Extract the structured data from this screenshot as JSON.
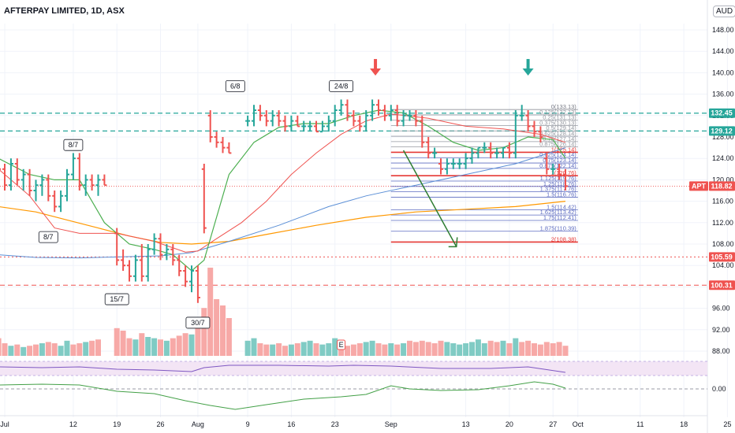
{
  "header": {
    "title": "AFTERPAY LIMITED, 1D, ASX",
    "currency": "AUD"
  },
  "chart_data": {
    "type": "bar",
    "symbol": "APT",
    "timeframe": "1D",
    "title": "AFTERPAY LIMITED, 1D, ASX",
    "y_ticks": [
      "148.00",
      "144.00",
      "140.00",
      "136.00",
      "132.00",
      "128.00",
      "124.00",
      "120.00",
      "116.00",
      "112.00",
      "108.00",
      "104.00",
      "100.00",
      "96.00",
      "92.00",
      "88.00"
    ],
    "y_tick_values": [
      148,
      144,
      140,
      136,
      132,
      128,
      124,
      120,
      116,
      112,
      108,
      104,
      100,
      96,
      92,
      88
    ],
    "ylim": [
      86.5,
      151.5
    ],
    "x_ticks": [
      {
        "label": "Jul",
        "day": 0
      },
      {
        "label": "12",
        "day": 11
      },
      {
        "label": "19",
        "day": 18
      },
      {
        "label": "26",
        "day": 25
      },
      {
        "label": "Aug",
        "day": 31
      },
      {
        "label": "9",
        "day": 39
      },
      {
        "label": "16",
        "day": 46
      },
      {
        "label": "23",
        "day": 53
      },
      {
        "label": "Sep",
        "day": 62
      },
      {
        "label": "13",
        "day": 74
      },
      {
        "label": "20",
        "day": 81
      },
      {
        "label": "27",
        "day": 88
      },
      {
        "label": "Oct",
        "day": 92
      },
      {
        "label": "11",
        "day": 102
      },
      {
        "label": "18",
        "day": 109
      },
      {
        "label": "25",
        "day": 116
      }
    ],
    "price_labels": [
      {
        "label": "132.45",
        "value": 132.45,
        "color": "#26a69a"
      },
      {
        "label": "129.12",
        "value": 129.12,
        "color": "#26a69a"
      },
      {
        "label": "APT",
        "value": 118.82,
        "color": "#ef5350"
      },
      {
        "label": "118.82",
        "value": 118.82,
        "color": "#ef5350"
      },
      {
        "label": "105.59",
        "value": 105.59,
        "color": "#ef5350"
      },
      {
        "label": "100.31",
        "value": 100.31,
        "color": "#ef5350"
      }
    ],
    "date_annotations": [
      {
        "label": "6/8",
        "day": 37,
        "value": 137.5
      },
      {
        "label": "24/8",
        "day": 54,
        "value": 137.5
      },
      {
        "label": "8/7",
        "day": 11,
        "value": 126.5
      },
      {
        "label": "8/7",
        "day": 7,
        "value": 109.3
      },
      {
        "label": "15/7",
        "day": 18,
        "value": 97.7
      },
      {
        "label": "30/7",
        "day": 31,
        "value": 93.3
      }
    ],
    "fib_levels": [
      {
        "label": "0(133.13)",
        "value": 133.13
      },
      {
        "label": "0.125(132.13)",
        "value": 132.13
      },
      {
        "label": "0.25(131.13)",
        "value": 131.13
      },
      {
        "label": "0.375(130.13)",
        "value": 130.13
      },
      {
        "label": "0.5(129.14)",
        "value": 129.14
      },
      {
        "label": "0.625(128.14)",
        "value": 128.14
      },
      {
        "label": "0.75(127.14)",
        "value": 127.14
      },
      {
        "label": "0.875(126.14)",
        "value": 126.14
      },
      {
        "label": "1(125.14)",
        "value": 125.14
      },
      {
        "label": "0.625(124.14)",
        "value": 124.14
      },
      {
        "label": "0.75(123.14)",
        "value": 123.14
      },
      {
        "label": "0.875(122.14)",
        "value": 122.14
      },
      {
        "label": "1(120.76)",
        "value": 120.76
      },
      {
        "label": "1.125(119.76)",
        "value": 119.76
      },
      {
        "label": "1.25(118.76)",
        "value": 118.76
      },
      {
        "label": "1.375(117.76)",
        "value": 117.76
      },
      {
        "label": "1.5(116.76)",
        "value": 116.76
      },
      {
        "label": "1.5(114.42)",
        "value": 114.42
      },
      {
        "label": "1.625(113.42)",
        "value": 113.42
      },
      {
        "label": "1.75(112.41)",
        "value": 112.41
      },
      {
        "label": "1.875(110.39)",
        "value": 110.39
      },
      {
        "label": "2(108.38)",
        "value": 108.38
      }
    ],
    "ohlc": [
      [
        -1,
        128,
        130,
        120,
        122
      ],
      [
        0,
        122,
        123,
        118,
        119
      ],
      [
        1,
        119,
        124,
        118,
        123
      ],
      [
        2,
        123,
        124,
        119,
        120
      ],
      [
        3,
        120,
        122,
        118,
        121
      ],
      [
        4,
        121,
        122,
        117,
        118
      ],
      [
        5,
        118,
        120,
        116,
        119
      ],
      [
        6,
        119,
        121,
        117,
        120
      ],
      [
        7,
        120,
        121,
        116,
        117
      ],
      [
        8,
        117,
        118,
        114,
        115
      ],
      [
        9,
        115,
        118,
        114,
        117
      ],
      [
        10,
        117,
        122,
        116,
        121
      ],
      [
        11,
        121,
        125,
        120,
        124
      ],
      [
        12,
        124,
        125,
        118,
        119
      ],
      [
        13,
        119,
        121,
        117,
        120
      ],
      [
        14,
        120,
        121,
        118,
        119
      ],
      [
        15,
        119,
        121,
        117,
        120
      ],
      [
        16,
        120,
        121,
        119,
        119
      ],
      [
        18,
        110,
        111,
        104,
        105
      ],
      [
        19,
        105,
        107,
        103,
        104
      ],
      [
        20,
        104,
        105,
        101,
        102
      ],
      [
        21,
        102,
        106,
        101,
        105
      ],
      [
        22,
        105,
        108,
        101,
        102
      ],
      [
        23,
        102,
        108,
        101,
        107
      ],
      [
        24,
        107,
        110,
        106,
        109
      ],
      [
        25,
        109,
        110,
        105,
        106
      ],
      [
        26,
        106,
        108,
        105,
        107
      ],
      [
        27,
        107,
        108,
        104,
        105
      ],
      [
        28,
        105,
        106,
        102,
        103
      ],
      [
        29,
        103,
        104,
        100,
        101
      ],
      [
        30,
        101,
        104,
        99,
        103
      ],
      [
        31,
        103,
        104,
        97,
        98
      ],
      [
        32,
        122,
        123,
        110,
        111
      ],
      [
        33,
        132,
        133,
        127,
        128
      ],
      [
        34,
        128,
        129,
        126,
        127
      ],
      [
        35,
        127,
        128,
        125,
        126
      ],
      [
        36,
        126,
        127,
        125,
        125
      ],
      [
        39,
        131,
        132,
        130,
        131
      ],
      [
        40,
        131,
        134,
        130,
        133
      ],
      [
        41,
        133,
        134,
        131,
        132
      ],
      [
        42,
        132,
        133,
        130,
        131
      ],
      [
        43,
        131,
        133,
        130,
        132
      ],
      [
        44,
        132,
        133,
        130,
        131
      ],
      [
        45,
        131,
        132,
        129,
        130
      ],
      [
        46,
        130,
        132,
        129,
        131
      ],
      [
        47,
        131,
        132,
        130,
        130
      ],
      [
        48,
        130,
        131,
        129,
        130
      ],
      [
        49,
        130,
        131,
        129,
        130
      ],
      [
        50,
        130,
        131,
        129,
        129
      ],
      [
        51,
        129,
        131,
        129,
        130
      ],
      [
        52,
        130,
        132,
        129,
        131
      ],
      [
        53,
        131,
        134,
        130,
        133
      ],
      [
        54,
        133,
        135,
        132,
        134
      ],
      [
        55,
        134,
        135,
        131,
        132
      ],
      [
        56,
        132,
        133,
        130,
        131
      ],
      [
        57,
        131,
        132,
        129,
        130
      ],
      [
        58,
        130,
        133,
        129,
        132
      ],
      [
        59,
        132,
        135,
        131,
        134
      ],
      [
        60,
        134,
        135,
        132,
        133
      ],
      [
        61,
        133,
        134,
        131,
        132
      ],
      [
        62,
        132,
        134,
        131,
        133
      ],
      [
        63,
        133,
        134,
        130,
        131
      ],
      [
        64,
        131,
        133,
        130,
        132
      ],
      [
        65,
        132,
        133,
        131,
        132
      ],
      [
        66,
        132,
        133,
        130,
        131
      ],
      [
        67,
        131,
        132,
        126,
        127
      ],
      [
        68,
        127,
        128,
        124,
        125
      ],
      [
        69,
        125,
        126,
        124,
        125
      ],
      [
        70,
        123,
        124,
        121,
        122
      ],
      [
        71,
        122,
        124,
        121,
        123
      ],
      [
        72,
        123,
        124,
        122,
        123
      ],
      [
        73,
        123,
        124,
        122,
        123
      ],
      [
        74,
        123,
        125,
        122,
        124
      ],
      [
        75,
        124,
        126,
        123,
        125
      ],
      [
        76,
        125,
        126,
        124,
        126
      ],
      [
        77,
        126,
        127,
        125,
        126
      ],
      [
        78,
        126,
        127,
        124,
        125
      ],
      [
        79,
        125,
        126,
        124,
        125
      ],
      [
        80,
        125,
        126,
        124,
        126
      ],
      [
        81,
        126,
        127,
        124,
        125
      ],
      [
        82,
        125,
        133,
        124,
        132
      ],
      [
        83,
        132,
        134,
        131,
        132
      ],
      [
        84,
        132,
        133,
        129,
        130
      ],
      [
        85,
        130,
        131,
        128,
        129
      ],
      [
        86,
        129,
        130,
        127,
        128
      ],
      [
        87,
        124,
        125,
        121,
        122
      ],
      [
        88,
        122,
        123,
        121,
        122
      ],
      [
        89,
        122,
        123,
        120,
        121
      ],
      [
        90,
        121,
        122,
        118,
        118.82
      ]
    ],
    "volume": [
      [
        -1,
        14,
        false
      ],
      [
        0,
        10,
        false
      ],
      [
        1,
        8,
        true
      ],
      [
        2,
        9,
        false
      ],
      [
        3,
        7,
        true
      ],
      [
        4,
        8,
        false
      ],
      [
        5,
        9,
        false
      ],
      [
        6,
        10,
        true
      ],
      [
        7,
        11,
        false
      ],
      [
        8,
        10,
        false
      ],
      [
        9,
        8,
        true
      ],
      [
        10,
        12,
        true
      ],
      [
        11,
        9,
        false
      ],
      [
        12,
        10,
        false
      ],
      [
        13,
        11,
        true
      ],
      [
        14,
        12,
        false
      ],
      [
        15,
        13,
        false
      ],
      [
        18,
        22,
        false
      ],
      [
        19,
        20,
        false
      ],
      [
        20,
        14,
        false
      ],
      [
        21,
        13,
        true
      ],
      [
        22,
        18,
        false
      ],
      [
        23,
        15,
        true
      ],
      [
        24,
        14,
        true
      ],
      [
        25,
        13,
        false
      ],
      [
        26,
        12,
        true
      ],
      [
        27,
        14,
        false
      ],
      [
        28,
        16,
        false
      ],
      [
        29,
        18,
        false
      ],
      [
        30,
        17,
        true
      ],
      [
        31,
        30,
        false
      ],
      [
        32,
        38,
        false
      ],
      [
        33,
        70,
        false
      ],
      [
        34,
        45,
        false
      ],
      [
        35,
        40,
        false
      ],
      [
        36,
        30,
        false
      ],
      [
        39,
        12,
        true
      ],
      [
        40,
        14,
        true
      ],
      [
        41,
        10,
        false
      ],
      [
        42,
        9,
        false
      ],
      [
        43,
        9,
        true
      ],
      [
        44,
        10,
        false
      ],
      [
        45,
        8,
        false
      ],
      [
        46,
        9,
        true
      ],
      [
        47,
        10,
        false
      ],
      [
        48,
        11,
        true
      ],
      [
        49,
        12,
        true
      ],
      [
        50,
        10,
        false
      ],
      [
        51,
        9,
        true
      ],
      [
        52,
        10,
        true
      ],
      [
        53,
        14,
        true
      ],
      [
        54,
        9,
        false
      ],
      [
        55,
        8,
        false
      ],
      [
        56,
        9,
        false
      ],
      [
        57,
        10,
        false
      ],
      [
        58,
        11,
        true
      ],
      [
        59,
        12,
        true
      ],
      [
        60,
        10,
        false
      ],
      [
        61,
        9,
        false
      ],
      [
        62,
        10,
        true
      ],
      [
        63,
        9,
        false
      ],
      [
        64,
        10,
        true
      ],
      [
        65,
        12,
        false
      ],
      [
        66,
        11,
        false
      ],
      [
        67,
        12,
        false
      ],
      [
        68,
        11,
        false
      ],
      [
        69,
        10,
        false
      ],
      [
        70,
        12,
        false
      ],
      [
        71,
        11,
        true
      ],
      [
        72,
        10,
        true
      ],
      [
        73,
        9,
        true
      ],
      [
        74,
        10,
        true
      ],
      [
        75,
        11,
        true
      ],
      [
        76,
        13,
        true
      ],
      [
        77,
        10,
        true
      ],
      [
        78,
        12,
        false
      ],
      [
        79,
        11,
        false
      ],
      [
        80,
        12,
        true
      ],
      [
        81,
        10,
        false
      ],
      [
        82,
        14,
        true
      ],
      [
        83,
        11,
        false
      ],
      [
        84,
        12,
        false
      ],
      [
        85,
        10,
        false
      ],
      [
        86,
        9,
        false
      ],
      [
        87,
        11,
        false
      ],
      [
        88,
        10,
        false
      ],
      [
        89,
        11,
        false
      ],
      [
        90,
        8,
        false
      ]
    ],
    "volume_event_label": "E",
    "indicator_tick": "0.00",
    "axis_label_apt": "APT"
  }
}
